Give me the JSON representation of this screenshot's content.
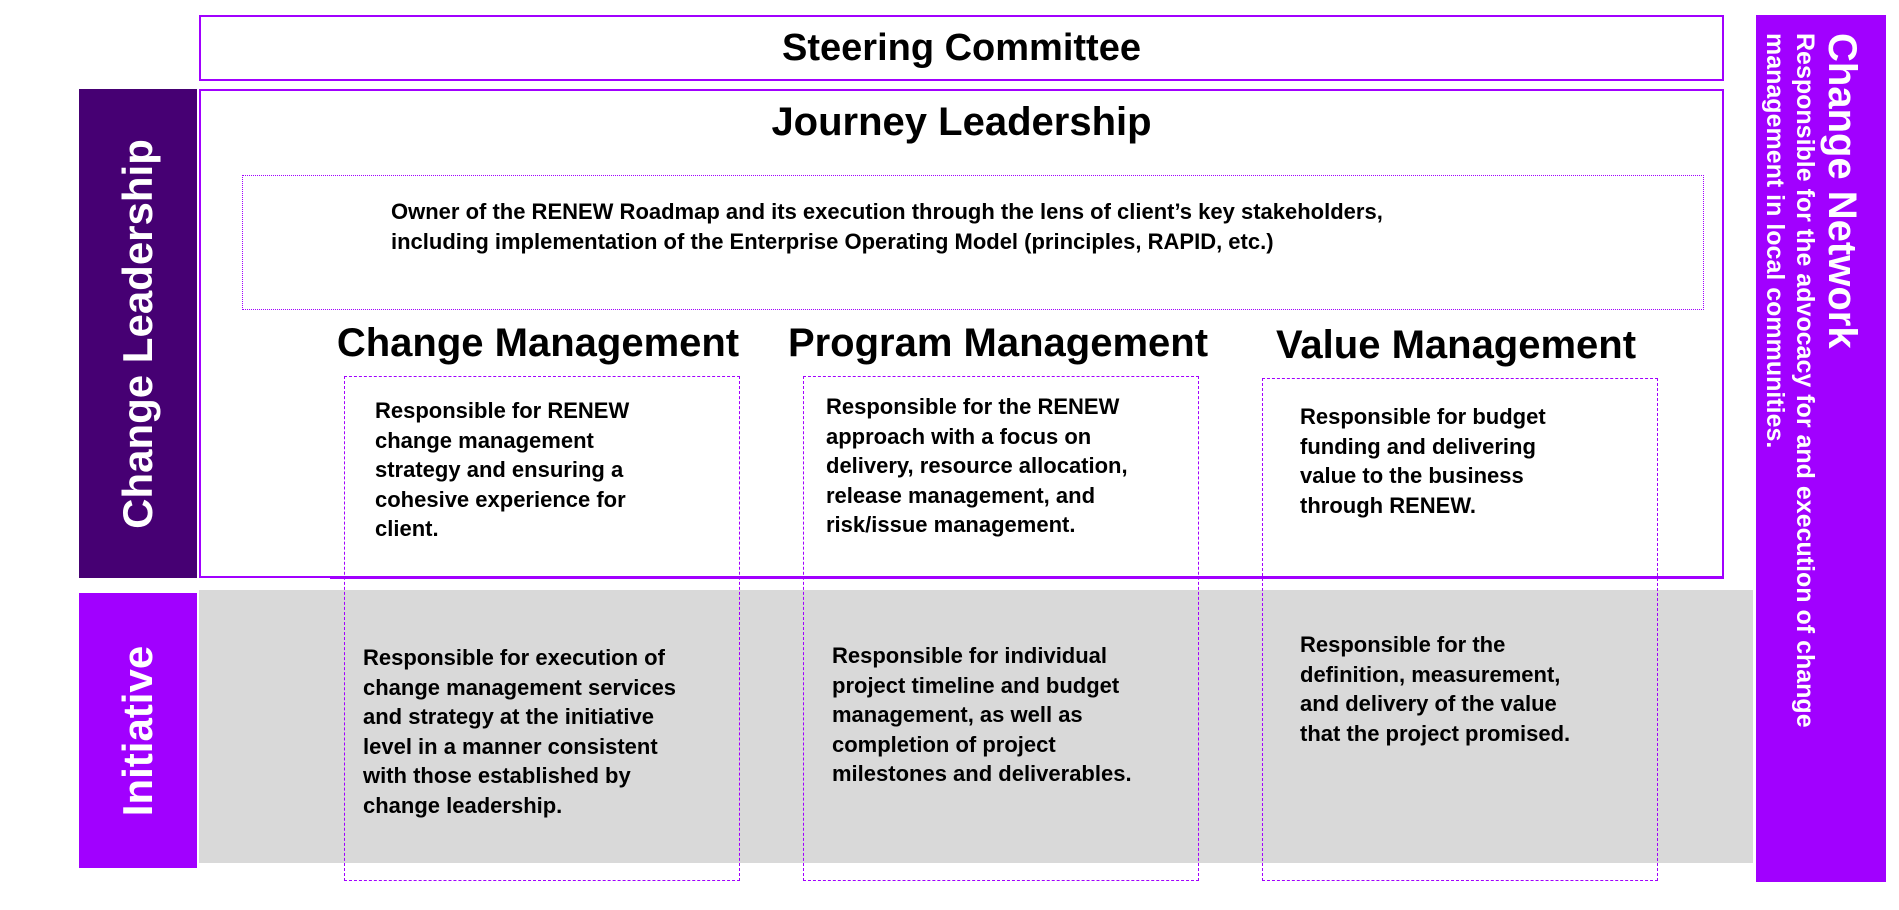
{
  "steering_committee": "Steering Committee",
  "journey_leadership": {
    "title": "Journey Leadership",
    "description_lines": [
      "Owner of the RENEW Roadmap and its execution through the lens of client’s key stakeholders,",
      "including implementation of the Enterprise Operating Model (principles, RAPID, etc.)"
    ]
  },
  "side_labels": {
    "change_leadership": "Change Leadership",
    "initiative": "Initiative"
  },
  "change_network": {
    "title": "Change Network",
    "description_lines": [
      "Responsible for the advocacy for  and execution of change",
      "management in local communities."
    ]
  },
  "columns": [
    {
      "title": "Change Management",
      "leadership_lines": [
        "Responsible for RENEW",
        "change management",
        "strategy and ensuring a",
        "cohesive experience for",
        "client."
      ],
      "initiative_lines": [
        "Responsible for execution of",
        "change management services",
        "and strategy at the initiative",
        "level in a manner consistent",
        "with those established by",
        "change leadership."
      ]
    },
    {
      "title": "Program Management",
      "leadership_lines": [
        "Responsible for the RENEW",
        "approach with a focus on",
        "delivery, resource allocation,",
        "release management,  and",
        "risk/issue management."
      ],
      "initiative_lines": [
        "Responsible for individual",
        "project timeline and budget",
        "management, as well as",
        "completion of project",
        "milestones and deliverables."
      ]
    },
    {
      "title": "Value Management",
      "leadership_lines": [
        "Responsible for budget",
        "funding and delivering",
        "value to the business",
        "through RENEW."
      ],
      "initiative_lines": [
        "Responsible for the",
        "definition, measurement,",
        "and delivery of the value",
        "that the project promised."
      ]
    }
  ],
  "colors": {
    "accent_purple": "#a100ff",
    "dark_purple": "#460073",
    "initiative_band": "#d9d9d9"
  }
}
